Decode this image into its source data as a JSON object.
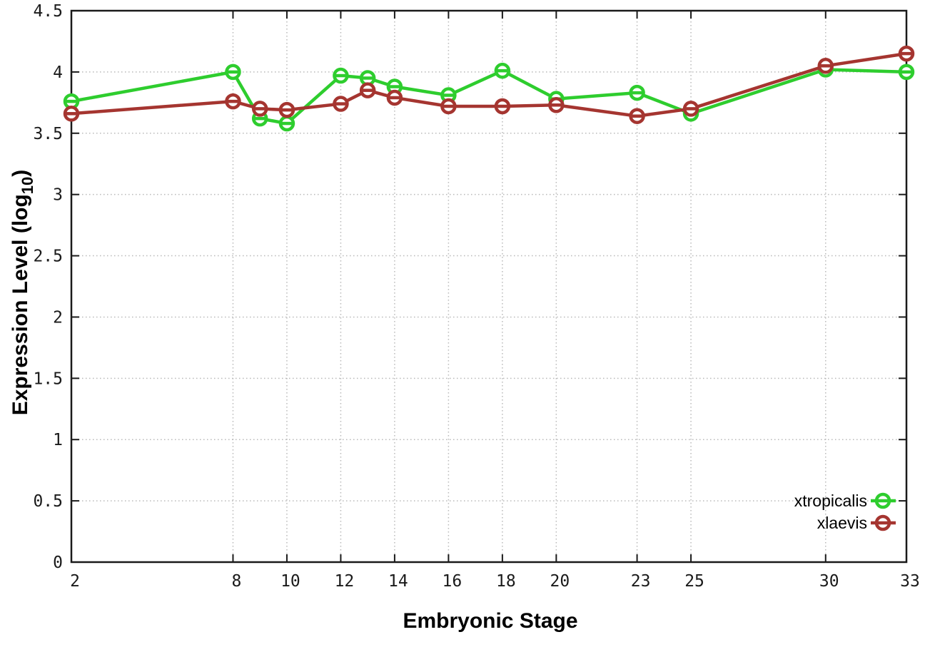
{
  "chart_data": {
    "type": "line",
    "title": "",
    "xlabel": "Embryonic Stage",
    "ylabel": "Expression Level (log10)",
    "ylabel_parts": {
      "main": "Expression Level (log",
      "sub": "10",
      "end": ")"
    },
    "xlim": [
      2,
      33
    ],
    "ylim": [
      0,
      4.5
    ],
    "grid": true,
    "legend_position": "bottom-right-inside",
    "marker_style": "open-circle",
    "x": [
      2,
      8,
      9,
      10,
      12,
      13,
      14,
      16,
      18,
      20,
      23,
      25,
      30,
      33
    ],
    "series": [
      {
        "name": "xtropicalis",
        "color": "#2ecd2e",
        "values": [
          3.76,
          4.0,
          3.62,
          3.58,
          3.97,
          3.95,
          3.88,
          3.81,
          4.01,
          3.78,
          3.83,
          3.66,
          4.02,
          4.0
        ]
      },
      {
        "name": "xlaevis",
        "color": "#a53530",
        "values": [
          3.66,
          3.76,
          3.7,
          3.69,
          3.74,
          3.85,
          3.79,
          3.72,
          3.72,
          3.73,
          3.64,
          3.7,
          4.05,
          4.15
        ]
      }
    ],
    "x_ticks": [
      {
        "value": 2,
        "label": "2"
      },
      {
        "value": 8,
        "label": "8"
      },
      {
        "value": 10,
        "label": "10"
      },
      {
        "value": 12,
        "label": "12"
      },
      {
        "value": 14,
        "label": "14"
      },
      {
        "value": 16,
        "label": "16"
      },
      {
        "value": 18,
        "label": "18"
      },
      {
        "value": 20,
        "label": "20"
      },
      {
        "value": 23,
        "label": "23"
      },
      {
        "value": 25,
        "label": "25"
      },
      {
        "value": 30,
        "label": "30"
      },
      {
        "value": 33,
        "label": "33"
      }
    ],
    "y_ticks": [
      {
        "value": 0,
        "label": "0"
      },
      {
        "value": 0.5,
        "label": "0.5"
      },
      {
        "value": 1,
        "label": "1"
      },
      {
        "value": 1.5,
        "label": "1.5"
      },
      {
        "value": 2,
        "label": "2"
      },
      {
        "value": 2.5,
        "label": "2.5"
      },
      {
        "value": 3,
        "label": "3"
      },
      {
        "value": 3.5,
        "label": "3.5"
      },
      {
        "value": 4,
        "label": "4"
      },
      {
        "value": 4.5,
        "label": "4.5"
      }
    ],
    "colors": {
      "background": "#ffffff",
      "border": "#1a1a1a",
      "grid": "#b9b9b9",
      "text": "#1a1a1a"
    }
  }
}
